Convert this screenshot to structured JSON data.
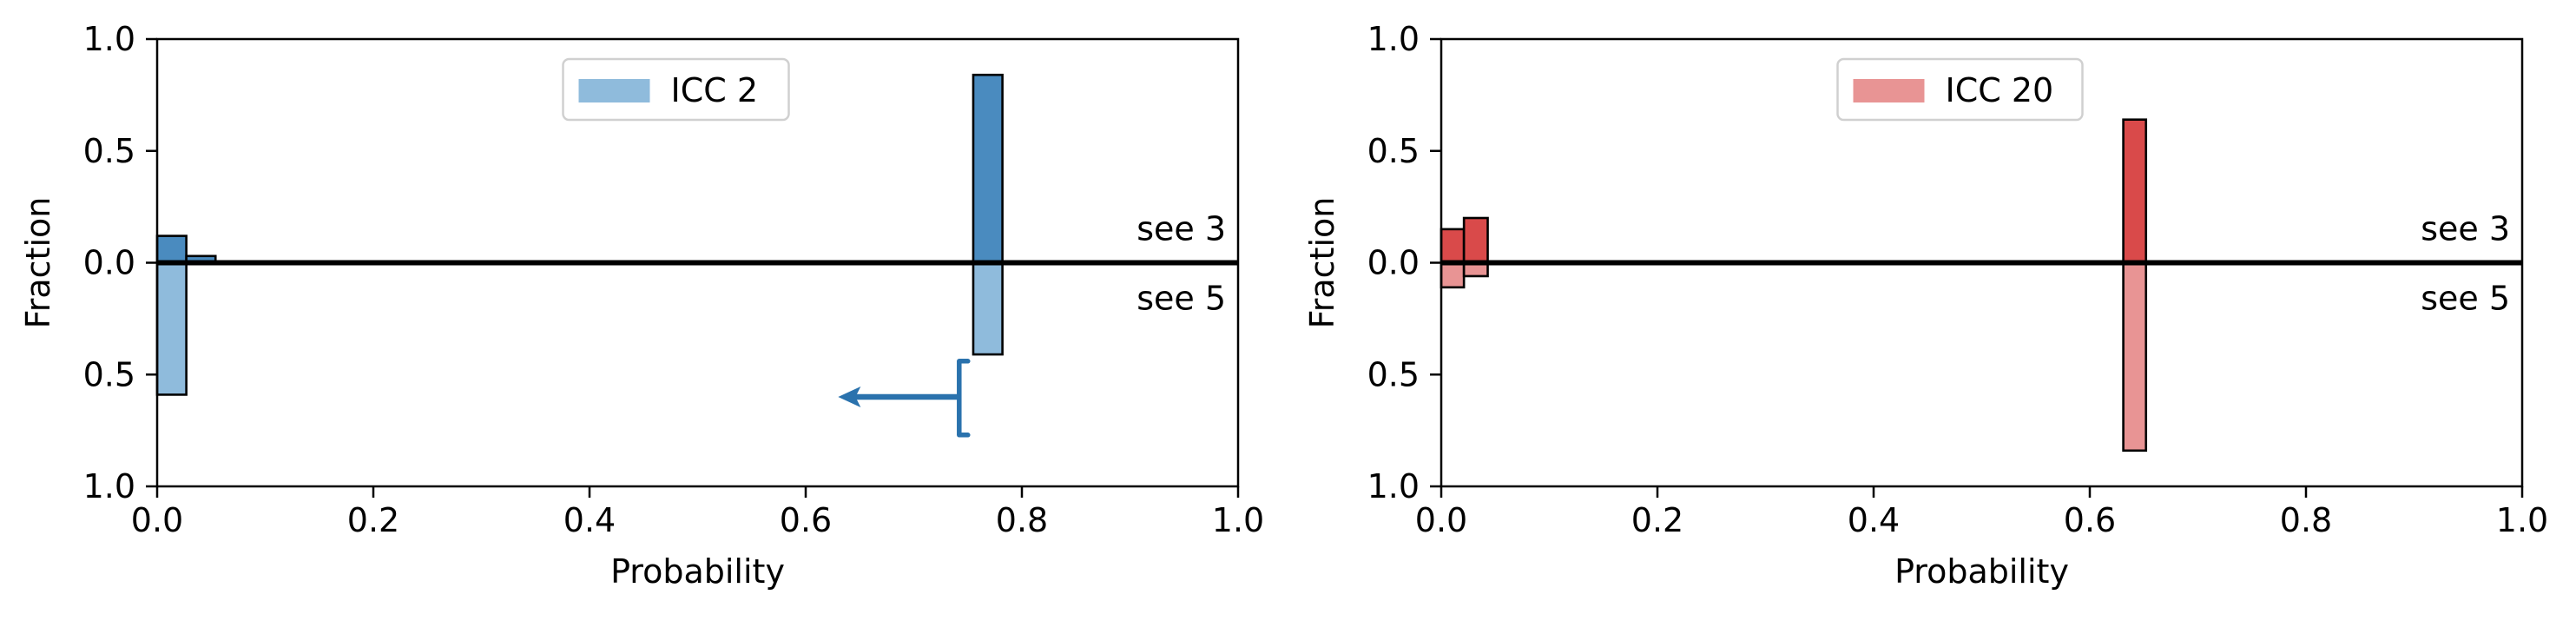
{
  "chart_data": [
    {
      "type": "bar",
      "panel": "left",
      "legend": {
        "label": "ICC 2",
        "color": "#8fbbdc",
        "placement": "top-center"
      },
      "colors": {
        "upper": "#4a8bbf",
        "lower": "#8fbbdc",
        "arrow": "#2a72ad"
      },
      "xlabel": "Probability",
      "ylabel": "Fraction",
      "xlim": [
        0.0,
        1.0
      ],
      "ylim": [
        -1.0,
        1.0
      ],
      "xticks": [
        "0.0",
        "0.2",
        "0.4",
        "0.6",
        "0.8",
        "1.0"
      ],
      "yticks": [
        "1.0",
        "0.5",
        "0.0",
        "0.5",
        "1.0"
      ],
      "upper_label": "see 3",
      "lower_label": "see 5",
      "upper_bars": [
        {
          "x0": 0.0,
          "x1": 0.027,
          "value": 0.12
        },
        {
          "x0": 0.027,
          "x1": 0.054,
          "value": 0.03
        },
        {
          "x0": 0.755,
          "x1": 0.782,
          "value": 0.84
        }
      ],
      "lower_bars": [
        {
          "x0": 0.0,
          "x1": 0.027,
          "value": 0.59
        },
        {
          "x0": 0.755,
          "x1": 0.782,
          "value": 0.41
        }
      ],
      "marker": {
        "x": 0.742,
        "y_center": -0.6,
        "y_low": -0.44,
        "y_high": -0.77,
        "arrow_to_x": 0.63
      }
    },
    {
      "type": "bar",
      "panel": "right",
      "legend": {
        "label": "ICC 20",
        "color": "#e89494",
        "placement": "top-center"
      },
      "colors": {
        "upper": "#d94a4a",
        "lower": "#e89494"
      },
      "xlabel": "Probability",
      "ylabel": "Fraction",
      "xlim": [
        0.0,
        1.0
      ],
      "ylim": [
        -1.0,
        1.0
      ],
      "xticks": [
        "0.0",
        "0.2",
        "0.4",
        "0.6",
        "0.8",
        "1.0"
      ],
      "yticks": [
        "1.0",
        "0.5",
        "0.0",
        "0.5",
        "1.0"
      ],
      "upper_label": "see 3",
      "lower_label": "see 5",
      "upper_bars": [
        {
          "x0": 0.0,
          "x1": 0.021,
          "value": 0.15
        },
        {
          "x0": 0.021,
          "x1": 0.043,
          "value": 0.2
        },
        {
          "x0": 0.631,
          "x1": 0.652,
          "value": 0.64
        }
      ],
      "lower_bars": [
        {
          "x0": 0.0,
          "x1": 0.021,
          "value": 0.11
        },
        {
          "x0": 0.021,
          "x1": 0.043,
          "value": 0.06
        },
        {
          "x0": 0.631,
          "x1": 0.652,
          "value": 0.84
        }
      ]
    }
  ]
}
